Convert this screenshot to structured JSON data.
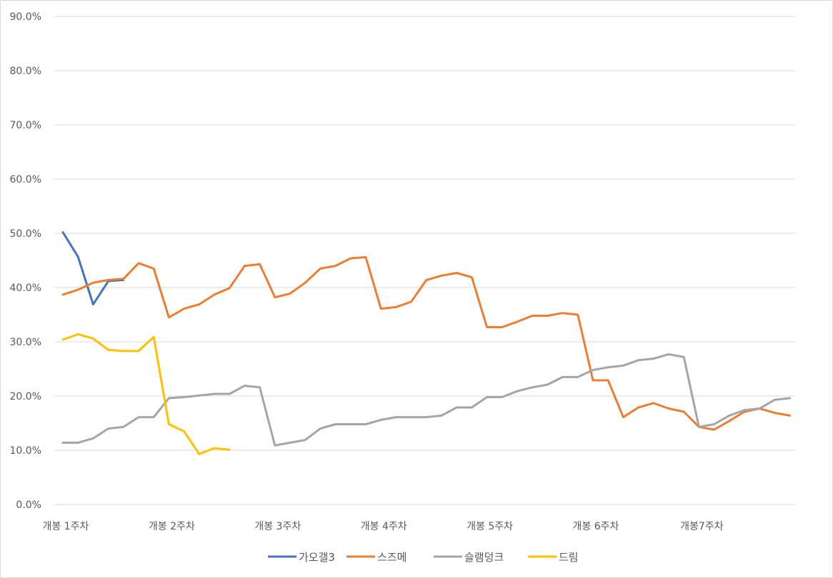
{
  "chart_data": {
    "type": "line",
    "title": "",
    "xlabel": "",
    "ylabel": "",
    "ylim": [
      0,
      90
    ],
    "y_ticks": [
      "0.0%",
      "10.0%",
      "20.0%",
      "30.0%",
      "40.0%",
      "50.0%",
      "60.0%",
      "70.0%",
      "80.0%",
      "90.0%"
    ],
    "x_tick_labels": [
      {
        "index": 0,
        "label": "개봉 1주차"
      },
      {
        "index": 7,
        "label": "개봉 2주차"
      },
      {
        "index": 14,
        "label": "개봉 3주차"
      },
      {
        "index": 21,
        "label": "개봉 4주차"
      },
      {
        "index": 28,
        "label": "개봉 5주차"
      },
      {
        "index": 35,
        "label": "개봉 6주차"
      },
      {
        "index": 42,
        "label": "개봉7주차"
      }
    ],
    "x_count": 49,
    "grid": true,
    "legend_position": "bottom",
    "series": [
      {
        "name": "가오갤3",
        "color": "#4472C4",
        "values": [
          50.2,
          45.7,
          36.9,
          41.2,
          41.4
        ]
      },
      {
        "name": "스즈메",
        "color": "#ED7D31",
        "values": [
          38.7,
          39.6,
          40.9,
          41.4,
          41.6,
          44.5,
          43.5,
          34.5,
          36.1,
          36.9,
          38.7,
          39.9,
          44.0,
          44.3,
          38.2,
          38.9,
          40.9,
          43.5,
          44.0,
          45.4,
          45.6,
          36.1,
          36.4,
          37.4,
          41.4,
          42.2,
          42.7,
          41.9,
          32.7,
          32.7,
          33.7,
          34.8,
          34.8,
          35.3,
          35.0,
          22.9,
          22.9,
          16.1,
          17.9,
          18.7,
          17.7,
          17.1,
          14.3,
          13.8,
          15.4,
          17.1,
          17.7,
          16.9,
          16.4
        ]
      },
      {
        "name": "슬램덩크",
        "color": "#A5A5A5",
        "values": [
          11.4,
          11.4,
          12.2,
          14.0,
          14.3,
          16.1,
          16.1,
          19.6,
          19.8,
          20.1,
          20.4,
          20.4,
          21.9,
          21.6,
          10.9,
          11.4,
          11.9,
          14.0,
          14.8,
          14.8,
          14.8,
          15.6,
          16.1,
          16.1,
          16.1,
          16.4,
          17.9,
          17.9,
          19.8,
          19.8,
          20.9,
          21.6,
          22.1,
          23.5,
          23.5,
          24.8,
          25.3,
          25.6,
          26.6,
          26.9,
          27.7,
          27.2,
          14.3,
          14.8,
          16.4,
          17.4,
          17.7,
          19.3,
          19.6
        ]
      },
      {
        "name": "드림",
        "color": "#FFC000",
        "values": [
          30.4,
          31.4,
          30.6,
          28.5,
          28.3,
          28.3,
          30.9,
          14.8,
          13.5,
          9.3,
          10.4,
          10.1
        ]
      }
    ]
  }
}
